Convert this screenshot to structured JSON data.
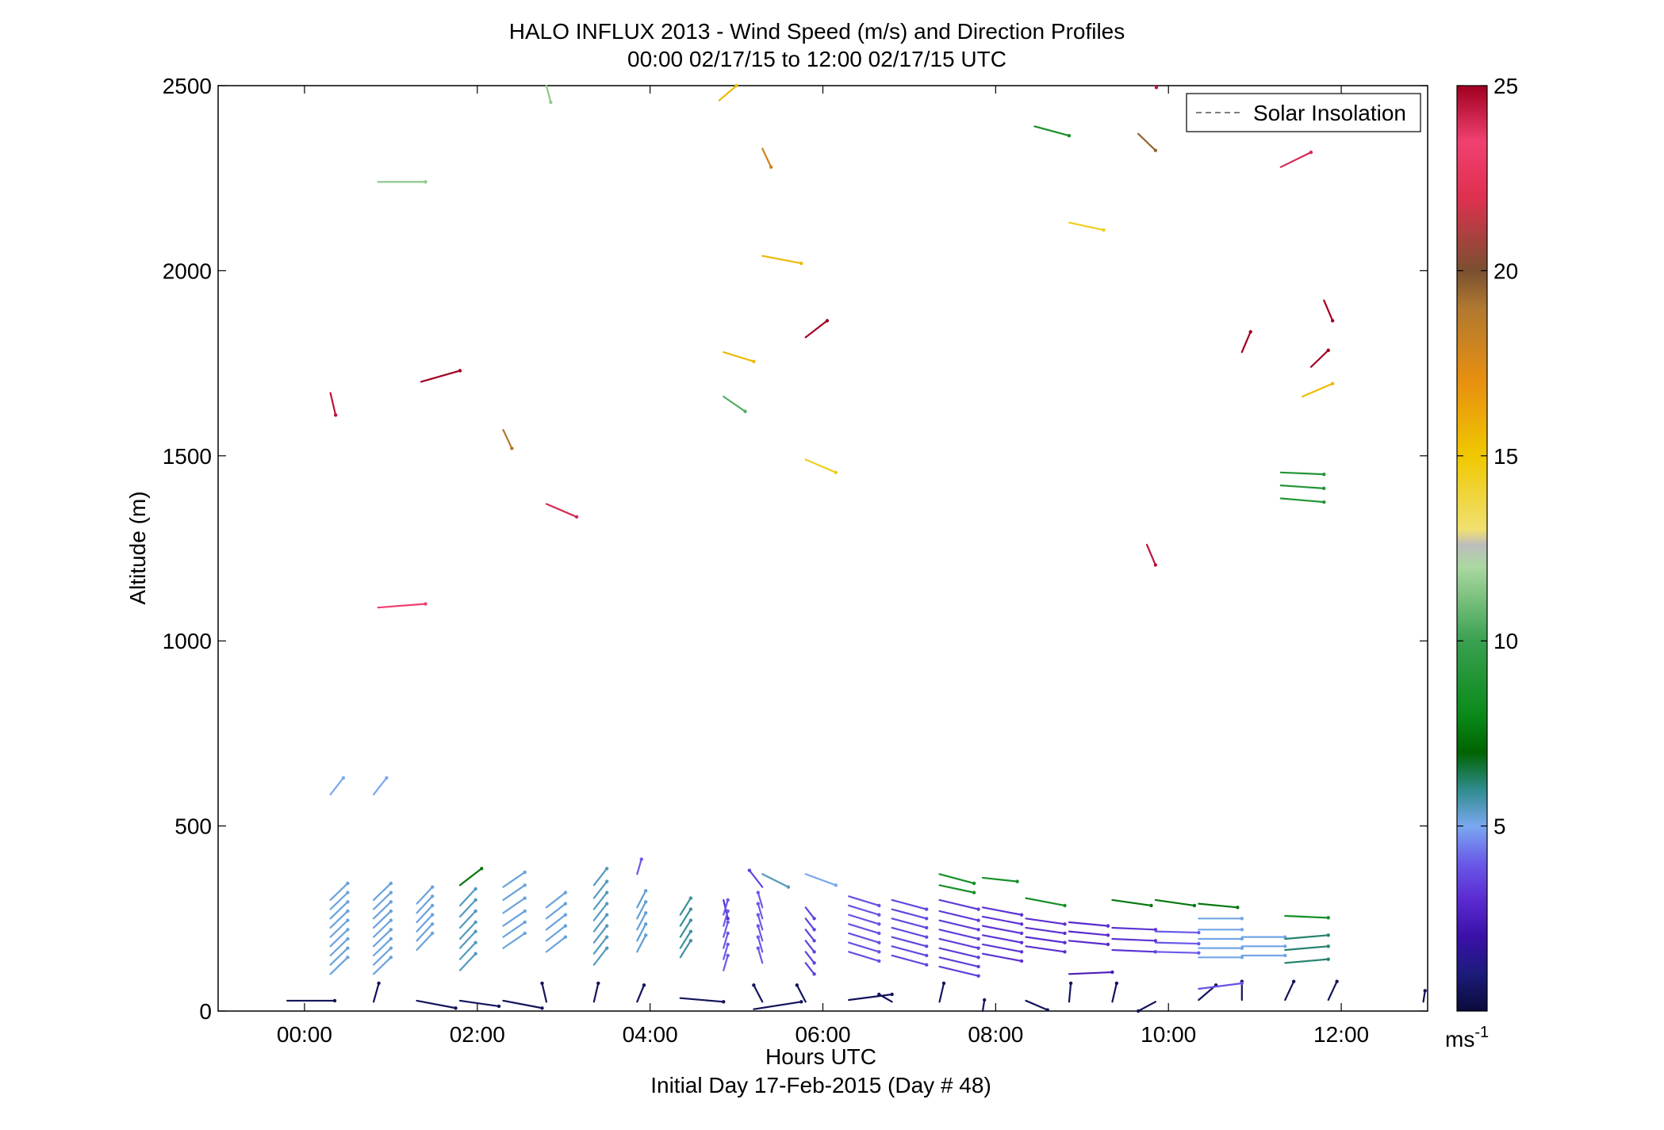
{
  "chart_data": {
    "type": "wind_barb_profile",
    "title": "HALO INFLUX 2013 - Wind Speed (m/s) and Direction Profiles",
    "subtitle": "00:00 02/17/15 to 12:00 02/17/15  UTC",
    "xlabel": "Hours UTC",
    "xlabel2": "Initial Day 17-Feb-2015 (Day # 48)",
    "ylabel": "Altitude (m)",
    "xlim": [
      -1,
      13
    ],
    "ylim": [
      0,
      2500
    ],
    "xticks": [
      {
        "value": 0,
        "label": "00:00"
      },
      {
        "value": 2,
        "label": "02:00"
      },
      {
        "value": 4,
        "label": "04:00"
      },
      {
        "value": 6,
        "label": "06:00"
      },
      {
        "value": 8,
        "label": "08:00"
      },
      {
        "value": 10,
        "label": "10:00"
      },
      {
        "value": 12,
        "label": "12:00"
      }
    ],
    "yticks": [
      0,
      500,
      1000,
      1500,
      2000,
      2500
    ],
    "legend": {
      "entries": [
        "Solar Insolation"
      ],
      "placement": "top-right",
      "line_style": "dashed",
      "line_color": "#808080"
    },
    "colorbar": {
      "min": 0,
      "max": 25,
      "ticks": [
        5,
        10,
        15,
        20,
        25
      ],
      "unit_label": "ms",
      "unit_exponent": "-1"
    },
    "colorscale": [
      [
        0,
        "#0a0a3c"
      ],
      [
        1,
        "#1c1c7a"
      ],
      [
        2,
        "#3a10a8"
      ],
      [
        3,
        "#5a2ad0"
      ],
      [
        4,
        "#6a5ae8"
      ],
      [
        5,
        "#7aa8f0"
      ],
      [
        6,
        "#2e8b8b"
      ],
      [
        7,
        "#006400"
      ],
      [
        8,
        "#0a8a1a"
      ],
      [
        10,
        "#3aa050"
      ],
      [
        12,
        "#aad8a0"
      ],
      [
        12.6,
        "#bdbdbd"
      ],
      [
        13,
        "#f0e070"
      ],
      [
        15,
        "#f0c800"
      ],
      [
        17,
        "#e89010"
      ],
      [
        19,
        "#b07830"
      ],
      [
        20,
        "#7a5030"
      ],
      [
        22,
        "#e03050"
      ],
      [
        23.5,
        "#f04070"
      ],
      [
        25,
        "#a00020"
      ]
    ],
    "vectors": [
      {
        "t": 0.3,
        "alt": 1670,
        "dx": 0.06,
        "dy": -60,
        "spd": 24.5
      },
      {
        "t": 0.85,
        "alt": 2240,
        "dx": 0.55,
        "dy": 0,
        "spd": 11.5
      },
      {
        "t": 0.85,
        "alt": 1090,
        "dx": 0.55,
        "dy": 10,
        "spd": 23.5
      },
      {
        "t": 1.35,
        "alt": 1700,
        "dx": 0.45,
        "dy": 30,
        "spd": 25
      },
      {
        "t": 2.3,
        "alt": 1570,
        "dx": 0.1,
        "dy": -50,
        "spd": 19
      },
      {
        "t": 2.8,
        "alt": 2500,
        "dx": 0.05,
        "dy": -45,
        "spd": 11.5
      },
      {
        "t": 2.8,
        "alt": 1370,
        "dx": 0.35,
        "dy": -35,
        "spd": 24
      },
      {
        "t": 4.8,
        "alt": 2460,
        "dx": 0.2,
        "dy": 40,
        "spd": 15.5
      },
      {
        "t": 5.3,
        "alt": 2330,
        "dx": 0.1,
        "dy": -50,
        "spd": 18
      },
      {
        "t": 5.3,
        "alt": 2040,
        "dx": 0.45,
        "dy": -20,
        "spd": 15.5
      },
      {
        "t": 4.85,
        "alt": 1780,
        "dx": 0.35,
        "dy": -25,
        "spd": 15.5
      },
      {
        "t": 4.85,
        "alt": 1660,
        "dx": 0.25,
        "dy": -40,
        "spd": 10.5
      },
      {
        "t": 5.8,
        "alt": 1820,
        "dx": 0.25,
        "dy": 45,
        "spd": 25
      },
      {
        "t": 5.8,
        "alt": 1490,
        "dx": 0.35,
        "dy": -35,
        "spd": 14.5
      },
      {
        "t": 8.45,
        "alt": 2390,
        "dx": 0.4,
        "dy": -25,
        "spd": 8.5
      },
      {
        "t": 8.85,
        "alt": 2130,
        "dx": 0.4,
        "dy": -20,
        "spd": 14.5
      },
      {
        "t": 9.65,
        "alt": 2370,
        "dx": 0.2,
        "dy": -45,
        "spd": 19.5
      },
      {
        "t": 9.85,
        "alt": 2500,
        "dx": 0.01,
        "dy": -5,
        "spd": 24.5
      },
      {
        "t": 11.3,
        "alt": 2280,
        "dx": 0.35,
        "dy": 40,
        "spd": 24
      },
      {
        "t": 9.75,
        "alt": 1260,
        "dx": 0.1,
        "dy": -55,
        "spd": 24.5
      },
      {
        "t": 10.85,
        "alt": 1780,
        "dx": 0.1,
        "dy": 55,
        "spd": 25
      },
      {
        "t": 11.8,
        "alt": 1920,
        "dx": 0.1,
        "dy": -55,
        "spd": 25
      },
      {
        "t": 11.65,
        "alt": 1740,
        "dx": 0.2,
        "dy": 45,
        "spd": 25
      },
      {
        "t": 11.55,
        "alt": 1660,
        "dx": 0.35,
        "dy": 35,
        "spd": 15.5
      },
      {
        "t": 11.3,
        "alt": 1455,
        "dx": 0.5,
        "dy": -5,
        "spd": 9
      },
      {
        "t": 11.3,
        "alt": 1420,
        "dx": 0.5,
        "dy": -8,
        "spd": 9
      },
      {
        "t": 11.3,
        "alt": 1385,
        "dx": 0.5,
        "dy": -10,
        "spd": 9
      },
      {
        "t": 0.3,
        "alt": 585,
        "dx": 0.15,
        "dy": 45,
        "spd": 5
      },
      {
        "t": 0.8,
        "alt": 585,
        "dx": 0.15,
        "dy": 45,
        "spd": 5
      },
      {
        "t": -0.2,
        "alt": 28,
        "dx": 0.55,
        "dy": 0,
        "spd": 0.5
      },
      {
        "t": 0.8,
        "alt": 25,
        "dx": 0.06,
        "dy": 50,
        "spd": 0.5
      },
      {
        "t": 1.3,
        "alt": 28,
        "dx": 0.45,
        "dy": -20,
        "spd": 0.5
      },
      {
        "t": 1.8,
        "alt": 28,
        "dx": 0.45,
        "dy": -15,
        "spd": 0.5
      },
      {
        "t": 2.3,
        "alt": 28,
        "dx": 0.45,
        "dy": -20,
        "spd": 0.5
      },
      {
        "t": 2.8,
        "alt": 25,
        "dx": -0.05,
        "dy": 50,
        "spd": 0.5
      },
      {
        "t": 3.35,
        "alt": 25,
        "dx": 0.05,
        "dy": 50,
        "spd": 0.5
      },
      {
        "t": 3.85,
        "alt": 25,
        "dx": 0.08,
        "dy": 45,
        "spd": 0.5
      },
      {
        "t": 4.35,
        "alt": 35,
        "dx": 0.5,
        "dy": -10,
        "spd": 0.5
      },
      {
        "t": 5.2,
        "alt": 5,
        "dx": 0.55,
        "dy": 20,
        "spd": 0.5
      },
      {
        "t": 5.3,
        "alt": 25,
        "dx": -0.1,
        "dy": 45,
        "spd": 0.5
      },
      {
        "t": 5.8,
        "alt": 25,
        "dx": -0.1,
        "dy": 45,
        "spd": 0.5
      },
      {
        "t": 6.3,
        "alt": 30,
        "dx": 0.5,
        "dy": 15,
        "spd": 0.5
      },
      {
        "t": 6.8,
        "alt": 25,
        "dx": -0.15,
        "dy": 20,
        "spd": 0.5
      },
      {
        "t": 7.35,
        "alt": 25,
        "dx": 0.05,
        "dy": 50,
        "spd": 0.5
      },
      {
        "t": 7.85,
        "alt": 0,
        "dx": 0.02,
        "dy": 30,
        "spd": 0.5
      },
      {
        "t": 8.35,
        "alt": 28,
        "dx": 0.25,
        "dy": -25,
        "spd": 0.5
      },
      {
        "t": 8.85,
        "alt": 25,
        "dx": 0.02,
        "dy": 50,
        "spd": 0.5
      },
      {
        "t": 9.35,
        "alt": 25,
        "dx": 0.05,
        "dy": 50,
        "spd": 0.5
      },
      {
        "t": 9.85,
        "alt": 25,
        "dx": -0.2,
        "dy": -25,
        "spd": 0.5
      },
      {
        "t": 10.35,
        "alt": 30,
        "dx": 0.2,
        "dy": 40,
        "spd": 0.5
      },
      {
        "t": 10.85,
        "alt": 30,
        "dx": 0.0,
        "dy": 50,
        "spd": 0.5
      },
      {
        "t": 11.35,
        "alt": 30,
        "dx": 0.1,
        "dy": 50,
        "spd": 0.5
      },
      {
        "t": 11.85,
        "alt": 30,
        "dx": 0.1,
        "dy": 50,
        "spd": 0.5
      },
      {
        "t": 12.95,
        "alt": 25,
        "dx": 0.02,
        "dy": 30,
        "spd": 0.5
      },
      {
        "t": 8.85,
        "alt": 100,
        "dx": 0.5,
        "dy": 5,
        "spd": 2.5
      },
      {
        "t": 10.35,
        "alt": 60,
        "dx": 0.5,
        "dy": 15,
        "spd": 3.8
      },
      {
        "t": 1.8,
        "alt": 340,
        "dx": 0.25,
        "dy": 45,
        "spd": 7.5
      },
      {
        "t": 4.85,
        "alt": 300,
        "dx": 0.05,
        "dy": -50,
        "spd": 3
      },
      {
        "t": 5.3,
        "alt": 335,
        "dx": -0.15,
        "dy": 45,
        "spd": 3.5
      },
      {
        "t": 3.85,
        "alt": 370,
        "dx": 0.05,
        "dy": 40,
        "spd": 4
      },
      {
        "t": 7.35,
        "alt": 370,
        "dx": 0.4,
        "dy": -25,
        "spd": 8.5
      },
      {
        "t": 7.35,
        "alt": 340,
        "dx": 0.4,
        "dy": -20,
        "spd": 8.5
      },
      {
        "t": 7.85,
        "alt": 360,
        "dx": 0.4,
        "dy": -10,
        "spd": 8.5
      },
      {
        "t": 8.35,
        "alt": 305,
        "dx": 0.45,
        "dy": -20,
        "spd": 8.5
      },
      {
        "t": 9.35,
        "alt": 300,
        "dx": 0.45,
        "dy": -15,
        "spd": 7.5
      },
      {
        "t": 9.85,
        "alt": 300,
        "dx": 0.45,
        "dy": -15,
        "spd": 7.5
      },
      {
        "t": 10.35,
        "alt": 290,
        "dx": 0.45,
        "dy": -10,
        "spd": 7.5
      },
      {
        "t": 11.35,
        "alt": 257,
        "dx": 0.5,
        "dy": -5,
        "spd": 8.5
      }
    ],
    "stacks": [
      {
        "t": 0.3,
        "dx": 0.2,
        "dy": 45,
        "spd": 5.2,
        "alts": [
          300,
          275,
          250,
          225,
          200,
          175,
          150,
          125,
          100
        ]
      },
      {
        "t": 0.8,
        "dx": 0.2,
        "dy": 45,
        "spd": 5.2,
        "alts": [
          300,
          275,
          250,
          225,
          200,
          175,
          150,
          125,
          100
        ]
      },
      {
        "t": 1.3,
        "dx": 0.18,
        "dy": 45,
        "spd": 5.2,
        "alts": [
          290,
          265,
          240,
          215,
          190,
          165
        ]
      },
      {
        "t": 1.8,
        "dx": 0.18,
        "dy": 45,
        "spd": 5.5,
        "alts": [
          285,
          255,
          225,
          195,
          170,
          140,
          110
        ]
      },
      {
        "t": 2.3,
        "dx": 0.25,
        "dy": 40,
        "spd": 5.2,
        "alts": [
          335,
          300,
          265,
          230,
          200,
          170
        ]
      },
      {
        "t": 2.8,
        "dx": 0.22,
        "dy": 40,
        "spd": 5.2,
        "alts": [
          280,
          250,
          220,
          190,
          160
        ]
      },
      {
        "t": 3.35,
        "dx": 0.15,
        "dy": 45,
        "spd": 5.5,
        "alts": [
          340,
          305,
          275,
          245,
          215,
          185,
          155,
          125
        ]
      },
      {
        "t": 3.85,
        "dx": 0.1,
        "dy": 45,
        "spd": 5.3,
        "alts": [
          280,
          250,
          220,
          190,
          160
        ]
      },
      {
        "t": 4.35,
        "dx": 0.12,
        "dy": 45,
        "spd": 5.8,
        "alts": [
          260,
          230,
          200,
          170,
          145
        ]
      },
      {
        "t": 4.85,
        "dx": 0.05,
        "dy": 40,
        "spd": 4,
        "alts": [
          260,
          230,
          200,
          170,
          140,
          110
        ]
      },
      {
        "t": 5.3,
        "dx": -0.05,
        "dy": 40,
        "spd": 4,
        "alts": [
          280,
          250,
          220,
          190,
          160,
          130
        ]
      },
      {
        "t": 5.3,
        "dx": 0.3,
        "dy": -35,
        "spd": 5.5,
        "alts": [
          370
        ]
      },
      {
        "t": 5.8,
        "dx": 0.35,
        "dy": -30,
        "spd": 5,
        "alts": [
          370
        ]
      },
      {
        "t": 5.8,
        "dx": 0.1,
        "dy": -30,
        "spd": 3.5,
        "alts": [
          280,
          250,
          220,
          190,
          160,
          130
        ]
      },
      {
        "t": 6.3,
        "dx": 0.35,
        "dy": -25,
        "spd": 3.8,
        "alts": [
          310,
          285,
          260,
          235,
          210,
          185,
          160
        ]
      },
      {
        "t": 6.8,
        "dx": 0.4,
        "dy": -25,
        "spd": 3.6,
        "alts": [
          300,
          275,
          250,
          225,
          200,
          175,
          150
        ]
      },
      {
        "t": 7.35,
        "dx": 0.45,
        "dy": -25,
        "spd": 3.4,
        "alts": [
          300,
          270,
          245,
          220,
          195,
          170,
          145,
          120
        ]
      },
      {
        "t": 7.85,
        "dx": 0.45,
        "dy": -20,
        "spd": 3.2,
        "alts": [
          280,
          255,
          230,
          205,
          180,
          155
        ]
      },
      {
        "t": 8.35,
        "dx": 0.45,
        "dy": -15,
        "spd": 3.1,
        "alts": [
          250,
          225,
          200,
          175
        ]
      },
      {
        "t": 8.85,
        "dx": 0.45,
        "dy": -10,
        "spd": 3,
        "alts": [
          240,
          215,
          190
        ]
      },
      {
        "t": 9.35,
        "dx": 0.5,
        "dy": -5,
        "spd": 3.2,
        "alts": [
          225,
          195,
          165
        ]
      },
      {
        "t": 9.85,
        "dx": 0.5,
        "dy": -3,
        "spd": 4,
        "alts": [
          215,
          185,
          160
        ]
      },
      {
        "t": 10.35,
        "dx": 0.5,
        "dy": 0,
        "spd": 5.1,
        "alts": [
          250,
          220,
          195,
          170,
          145
        ]
      },
      {
        "t": 10.85,
        "dx": 0.5,
        "dy": 0,
        "spd": 5.1,
        "alts": [
          200,
          175,
          150
        ]
      },
      {
        "t": 11.35,
        "dx": 0.5,
        "dy": 10,
        "spd": 6.2,
        "alts": [
          195,
          165,
          130
        ]
      }
    ]
  }
}
